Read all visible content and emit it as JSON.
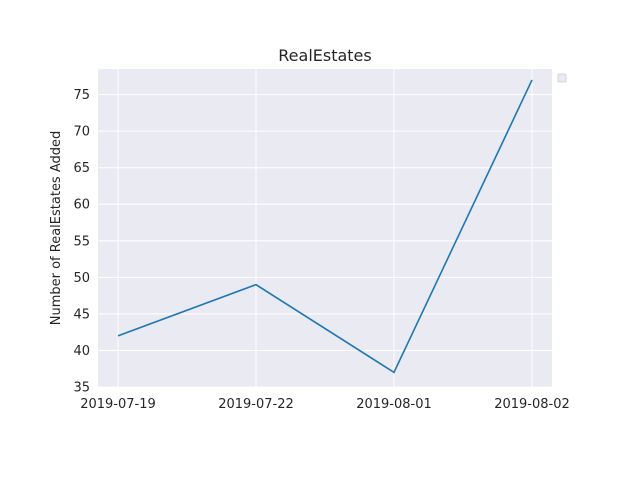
{
  "chart_data": {
    "type": "line",
    "title": "RealEstates",
    "xlabel": "",
    "ylabel": "Number of RealEstates Added",
    "categories": [
      "2019-07-19",
      "2019-07-22",
      "2019-08-01",
      "2019-08-02"
    ],
    "series": [
      {
        "values": [
          42,
          49,
          37,
          77
        ]
      }
    ],
    "ylim": [
      35,
      78.5
    ],
    "yticks": [
      35,
      40,
      45,
      50,
      55,
      60,
      65,
      70,
      75
    ],
    "grid": true,
    "legend": "top-right (empty)",
    "colors": {
      "line": "#1f77b4",
      "plot_bg": "#eaeaf2",
      "grid": "#ffffff"
    }
  }
}
